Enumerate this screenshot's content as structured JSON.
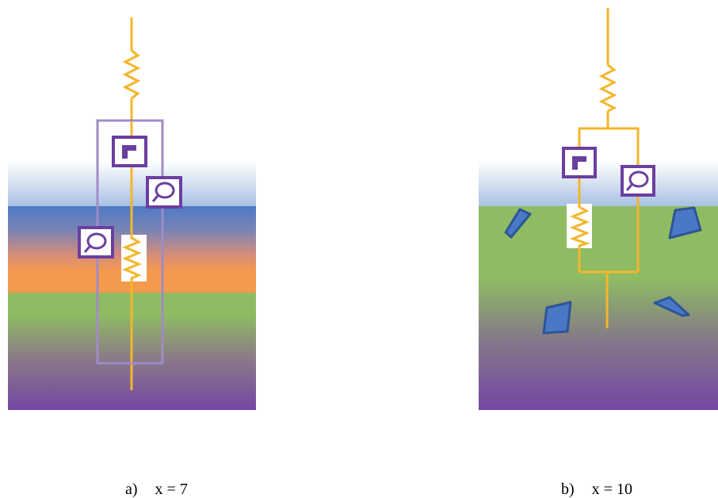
{
  "panels": [
    {
      "id": "a",
      "caption_label": "a)",
      "caption_eq": "x = 7"
    },
    {
      "id": "b",
      "caption_label": "b)",
      "caption_eq": "x = 10"
    }
  ],
  "colors": {
    "wire": "#f4b62c",
    "element_border": "#6b3fa0",
    "outline_box": "#a08cc4",
    "particle_fill": "#4a78c6",
    "particle_stroke": "#2d5596",
    "top_layer": "#c5d7ec",
    "blue_band": "#4f7cc4",
    "orange_band": "#f39a4c",
    "green_band": "#8fbc62",
    "purple_bottom": "#7446a4"
  },
  "icons": [
    "resistor-icon",
    "constant-phase-icon",
    "warburg-icon"
  ]
}
